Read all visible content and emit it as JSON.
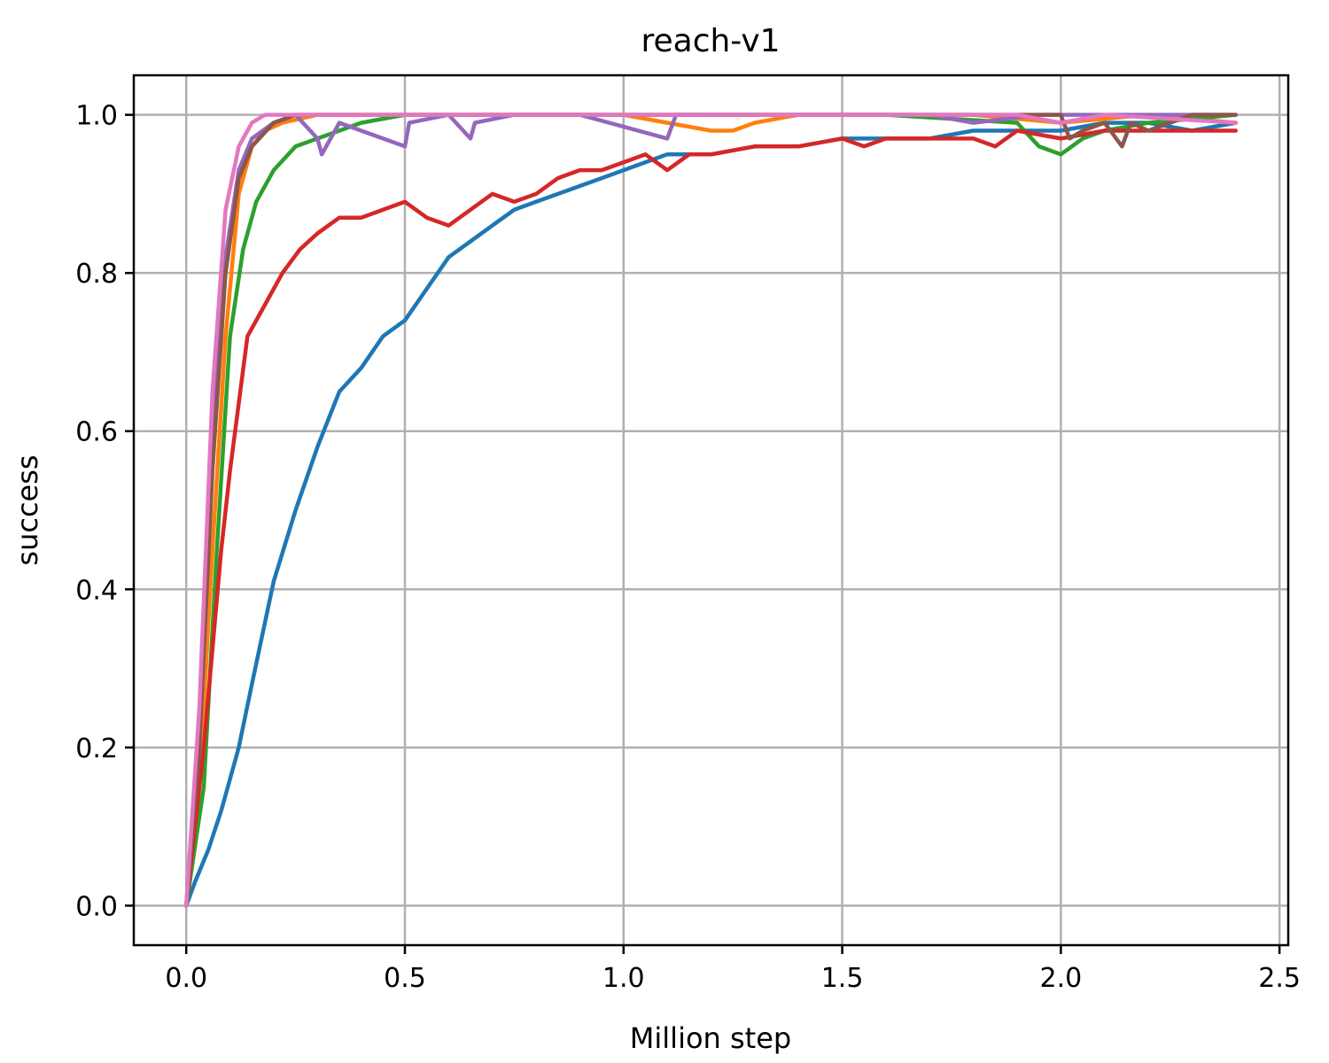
{
  "chart_data": {
    "type": "line",
    "title": "reach-v1",
    "xlabel": "Million step",
    "ylabel": "success",
    "xlim": [
      -0.12,
      2.52
    ],
    "ylim": [
      -0.05,
      1.05
    ],
    "xticks": [
      0.0,
      0.5,
      1.0,
      1.5,
      2.0,
      2.5
    ],
    "xtick_labels": [
      "0.0",
      "0.5",
      "1.0",
      "1.5",
      "2.0",
      "2.5"
    ],
    "yticks": [
      0.0,
      0.2,
      0.4,
      0.6,
      0.8,
      1.0
    ],
    "ytick_labels": [
      "0.0",
      "0.2",
      "0.4",
      "0.6",
      "0.8",
      "1.0"
    ],
    "grid": true,
    "legend": "none",
    "series": [
      {
        "color": "#1f77b4",
        "x": [
          0,
          0.02,
          0.05,
          0.08,
          0.12,
          0.15,
          0.2,
          0.25,
          0.3,
          0.35,
          0.4,
          0.45,
          0.5,
          0.55,
          0.6,
          0.65,
          0.7,
          0.75,
          0.8,
          0.85,
          0.9,
          0.95,
          1.0,
          1.1,
          1.2,
          1.3,
          1.4,
          1.5,
          1.6,
          1.7,
          1.8,
          1.9,
          2.0,
          2.1,
          2.2,
          2.3,
          2.4
        ],
        "y": [
          0,
          0.03,
          0.07,
          0.12,
          0.2,
          0.28,
          0.41,
          0.5,
          0.58,
          0.65,
          0.68,
          0.72,
          0.74,
          0.78,
          0.82,
          0.84,
          0.86,
          0.88,
          0.89,
          0.9,
          0.91,
          0.92,
          0.93,
          0.95,
          0.95,
          0.96,
          0.96,
          0.97,
          0.97,
          0.97,
          0.98,
          0.98,
          0.98,
          0.99,
          0.99,
          0.98,
          0.99
        ]
      },
      {
        "color": "#ff7f0e",
        "x": [
          0,
          0.03,
          0.06,
          0.09,
          0.12,
          0.15,
          0.18,
          0.22,
          0.3,
          0.5,
          0.8,
          1.0,
          1.1,
          1.2,
          1.25,
          1.3,
          1.4,
          1.6,
          1.8,
          2.0,
          2.2,
          2.4
        ],
        "y": [
          0,
          0.15,
          0.45,
          0.72,
          0.9,
          0.96,
          0.98,
          0.99,
          1.0,
          1.0,
          1.0,
          1.0,
          0.99,
          0.98,
          0.98,
          0.99,
          1.0,
          1.0,
          1.0,
          0.99,
          1.0,
          0.99
        ]
      },
      {
        "color": "#2ca02c",
        "x": [
          0,
          0.04,
          0.07,
          0.1,
          0.13,
          0.16,
          0.2,
          0.25,
          0.3,
          0.35,
          0.4,
          0.5,
          0.8,
          1.2,
          1.6,
          1.9,
          1.95,
          2.0,
          2.05,
          2.1,
          2.2,
          2.4
        ],
        "y": [
          0,
          0.15,
          0.45,
          0.72,
          0.83,
          0.89,
          0.93,
          0.96,
          0.97,
          0.98,
          0.99,
          1.0,
          1.0,
          1.0,
          1.0,
          0.99,
          0.96,
          0.95,
          0.97,
          0.98,
          0.99,
          1.0
        ]
      },
      {
        "color": "#d62728",
        "x": [
          0,
          0.04,
          0.08,
          0.1,
          0.14,
          0.18,
          0.22,
          0.26,
          0.3,
          0.35,
          0.4,
          0.45,
          0.5,
          0.55,
          0.6,
          0.65,
          0.7,
          0.75,
          0.8,
          0.85,
          0.9,
          0.95,
          1.0,
          1.05,
          1.1,
          1.15,
          1.2,
          1.3,
          1.4,
          1.5,
          1.55,
          1.6,
          1.7,
          1.8,
          1.85,
          1.9,
          2.0,
          2.1,
          2.2,
          2.3,
          2.4
        ],
        "y": [
          0,
          0.2,
          0.45,
          0.55,
          0.72,
          0.76,
          0.8,
          0.83,
          0.85,
          0.87,
          0.87,
          0.88,
          0.89,
          0.87,
          0.86,
          0.88,
          0.9,
          0.89,
          0.9,
          0.92,
          0.93,
          0.93,
          0.94,
          0.95,
          0.93,
          0.95,
          0.95,
          0.96,
          0.96,
          0.97,
          0.96,
          0.97,
          0.97,
          0.97,
          0.96,
          0.98,
          0.97,
          0.98,
          0.98,
          0.98,
          0.98
        ]
      },
      {
        "color": "#9467bd",
        "x": [
          0,
          0.03,
          0.06,
          0.09,
          0.12,
          0.15,
          0.2,
          0.25,
          0.3,
          0.31,
          0.35,
          0.45,
          0.5,
          0.51,
          0.6,
          0.65,
          0.66,
          0.75,
          0.9,
          1.1,
          1.12,
          1.3,
          1.5,
          1.7,
          1.8,
          1.95,
          2.1,
          2.4
        ],
        "y": [
          0,
          0.2,
          0.6,
          0.82,
          0.93,
          0.97,
          0.99,
          1.0,
          0.97,
          0.95,
          0.99,
          0.97,
          0.96,
          0.99,
          1.0,
          0.97,
          0.99,
          1.0,
          1.0,
          0.97,
          1.0,
          1.0,
          1.0,
          1.0,
          0.99,
          1.0,
          1.0,
          1.0
        ]
      },
      {
        "color": "#8c564b",
        "x": [
          0,
          0.03,
          0.06,
          0.09,
          0.12,
          0.15,
          0.2,
          0.25,
          0.3,
          0.5,
          0.8,
          1.2,
          1.6,
          2.0,
          2.02,
          2.05,
          2.1,
          2.14,
          2.16,
          2.2,
          2.25,
          2.3,
          2.4
        ],
        "y": [
          0,
          0.2,
          0.55,
          0.8,
          0.92,
          0.96,
          0.99,
          1.0,
          1.0,
          1.0,
          1.0,
          1.0,
          1.0,
          1.0,
          0.97,
          0.98,
          0.99,
          0.96,
          0.99,
          0.98,
          0.99,
          1.0,
          1.0
        ]
      },
      {
        "color": "#e377c2",
        "x": [
          0,
          0.03,
          0.06,
          0.09,
          0.12,
          0.15,
          0.18,
          0.22,
          0.3,
          0.6,
          1.0,
          1.5,
          1.9,
          2.0,
          2.1,
          2.4
        ],
        "y": [
          0,
          0.25,
          0.65,
          0.88,
          0.96,
          0.99,
          1.0,
          1.0,
          1.0,
          1.0,
          1.0,
          1.0,
          1.0,
          0.99,
          1.0,
          0.99
        ]
      }
    ]
  }
}
